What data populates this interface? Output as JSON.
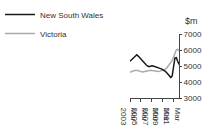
{
  "chart_data": {
    "type": "line",
    "title": "$m",
    "categories": [
      "Mar\n2003",
      null,
      null,
      null,
      null,
      null,
      null,
      null,
      "Mar\n2005",
      null,
      null,
      null,
      null,
      null,
      null,
      null,
      "Mar\n2007",
      null,
      null,
      null,
      null,
      null,
      null,
      null,
      "Mar\n2009",
      null,
      null,
      null,
      null,
      null,
      null,
      null,
      "Mar\n2011",
      null,
      null,
      null,
      null
    ],
    "series": [
      {
        "name": "Victoria",
        "color": "#aaaaaa",
        "values": [
          4600,
          4650,
          4680,
          4720,
          4720,
          4740,
          4720,
          4680,
          4640,
          4620,
          4640,
          4660,
          4700,
          4740,
          4760,
          4740,
          4720,
          4700,
          4680,
          4660,
          4640,
          4660,
          4680,
          4700,
          4720,
          4760,
          4800,
          4880,
          5000,
          5100,
          5200,
          5350,
          5550,
          5800,
          6000,
          6050,
          5950
        ]
      },
      {
        "name": "New South Wales",
        "color": "#1a1a1a",
        "values": [
          5300,
          5380,
          5480,
          5600,
          5680,
          5700,
          5620,
          5520,
          5400,
          5300,
          5200,
          5120,
          5060,
          5000,
          4960,
          4980,
          5020,
          5000,
          4960,
          4920,
          4880,
          4860,
          4850,
          4820,
          4780,
          4720,
          4660,
          4580,
          4480,
          4320,
          4280,
          4380,
          5000,
          5500,
          5520,
          5300,
          5100
        ]
      }
    ],
    "ylim": [
      3000,
      7000
    ],
    "yticks": [
      3000,
      4000,
      5000,
      6000,
      7000
    ],
    "grid": false,
    "legend": "upper left"
  }
}
